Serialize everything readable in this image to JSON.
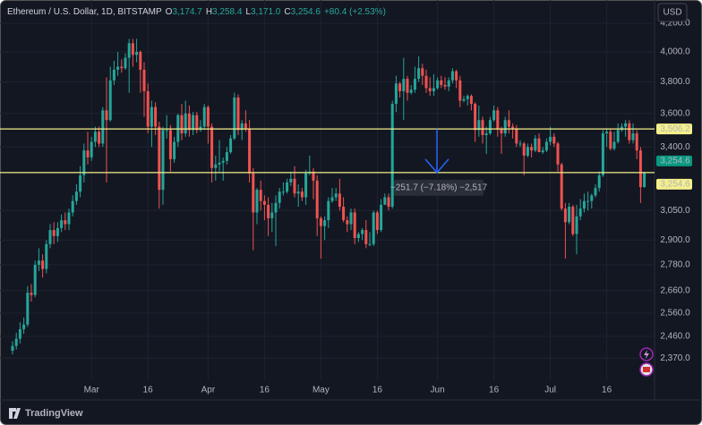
{
  "chart_data": {
    "type": "candlestick",
    "title": "Ethereum / U.S. Dollar, 1D, BITSTAMP",
    "ohlc_header": [
      {
        "label": "O",
        "value": "3,174.7"
      },
      {
        "label": "H",
        "value": "3,258.4"
      },
      {
        "label": "L",
        "value": "3,171.0"
      },
      {
        "label": "C",
        "value": "3,254.6"
      }
    ],
    "change": "+80.4 (+2.53%)",
    "currency": "USD",
    "log_scale": true,
    "grid": true,
    "up_color": "#26a69a",
    "down_color": "#ef5350",
    "ylim": [
      2282,
      4371
    ],
    "yticks": [
      {
        "value": 4200,
        "label": "4,200.0"
      },
      {
        "value": 4000,
        "label": "4,000.0"
      },
      {
        "value": 3800,
        "label": "3,800.0"
      },
      {
        "value": 3600,
        "label": "3,600.0"
      },
      {
        "value": 3400,
        "label": "3,400.0"
      },
      {
        "value": 3050,
        "label": "3,050.0"
      },
      {
        "value": 2900,
        "label": "2,900.0"
      },
      {
        "value": 2780,
        "label": "2,780.0"
      },
      {
        "value": 2660,
        "label": "2,660.0"
      },
      {
        "value": 2560,
        "label": "2,560.0"
      },
      {
        "value": 2460,
        "label": "2,460.0"
      },
      {
        "value": 2370,
        "label": "2,370.0"
      }
    ],
    "xticks": [
      {
        "value": 21,
        "label": "Mar"
      },
      {
        "value": 36,
        "label": "16"
      },
      {
        "value": 52,
        "label": "Apr"
      },
      {
        "value": 67,
        "label": "16"
      },
      {
        "value": 82,
        "label": "May"
      },
      {
        "value": 97,
        "label": "16"
      },
      {
        "value": 113,
        "label": "Jun"
      },
      {
        "value": 128,
        "label": "16"
      },
      {
        "value": 143,
        "label": "Jul"
      },
      {
        "value": 158,
        "label": "16"
      }
    ],
    "candles": [
      [
        2400,
        2440,
        2385,
        2420
      ],
      [
        2420,
        2475,
        2405,
        2450
      ],
      [
        2450,
        2520,
        2430,
        2490
      ],
      [
        2490,
        2540,
        2470,
        2510
      ],
      [
        2510,
        2680,
        2500,
        2650
      ],
      [
        2650,
        2690,
        2610,
        2640
      ],
      [
        2640,
        2800,
        2630,
        2780
      ],
      [
        2780,
        2860,
        2750,
        2800
      ],
      [
        2800,
        2830,
        2720,
        2760
      ],
      [
        2760,
        2900,
        2740,
        2880
      ],
      [
        2880,
        2980,
        2860,
        2950
      ],
      [
        2950,
        2990,
        2880,
        2920
      ],
      [
        2920,
        2990,
        2890,
        2960
      ],
      [
        2960,
        3030,
        2940,
        3000
      ],
      [
        3000,
        3040,
        2950,
        2980
      ],
      [
        2980,
        3060,
        2950,
        3040
      ],
      [
        3040,
        3130,
        3020,
        3100
      ],
      [
        3100,
        3190,
        3080,
        3150
      ],
      [
        3150,
        3290,
        3120,
        3240
      ],
      [
        3240,
        3420,
        3200,
        3380
      ],
      [
        3380,
        3490,
        3300,
        3340
      ],
      [
        3340,
        3460,
        3320,
        3430
      ],
      [
        3430,
        3520,
        3400,
        3490
      ],
      [
        3490,
        3520,
        3400,
        3420
      ],
      [
        3420,
        3640,
        3400,
        3620
      ],
      [
        3620,
        3830,
        3200,
        3560
      ],
      [
        3560,
        3900,
        3550,
        3810
      ],
      [
        3810,
        3940,
        3780,
        3880
      ],
      [
        3880,
        4000,
        3840,
        3900
      ],
      [
        3900,
        3950,
        3860,
        3890
      ],
      [
        3890,
        3990,
        3880,
        3960
      ],
      [
        3960,
        4090,
        3730,
        4060
      ],
      [
        4060,
        4090,
        3900,
        3980
      ],
      [
        3980,
        4090,
        3930,
        4000
      ],
      [
        4000,
        4010,
        3730,
        3880
      ],
      [
        3880,
        3930,
        3580,
        3740
      ],
      [
        3740,
        3790,
        3480,
        3520
      ],
      [
        3520,
        3680,
        3400,
        3640
      ],
      [
        3640,
        3670,
        3470,
        3520
      ],
      [
        3520,
        3550,
        3060,
        3160
      ],
      [
        3160,
        3520,
        3080,
        3500
      ],
      [
        3500,
        3590,
        3450,
        3500
      ],
      [
        3500,
        3530,
        3260,
        3330
      ],
      [
        3330,
        3460,
        3310,
        3430
      ],
      [
        3430,
        3600,
        3400,
        3590
      ],
      [
        3590,
        3660,
        3440,
        3480
      ],
      [
        3480,
        3680,
        3460,
        3600
      ],
      [
        3600,
        3650,
        3460,
        3500
      ],
      [
        3500,
        3610,
        3470,
        3590
      ],
      [
        3590,
        3610,
        3480,
        3500
      ],
      [
        3500,
        3560,
        3490,
        3520
      ],
      [
        3520,
        3660,
        3500,
        3640
      ],
      [
        3640,
        3650,
        3420,
        3520
      ],
      [
        3520,
        3540,
        3200,
        3280
      ],
      [
        3280,
        3350,
        3210,
        3300
      ],
      [
        3300,
        3440,
        3260,
        3310
      ],
      [
        3310,
        3340,
        3210,
        3320
      ],
      [
        3320,
        3400,
        3300,
        3370
      ],
      [
        3370,
        3470,
        3360,
        3450
      ],
      [
        3450,
        3730,
        3440,
        3700
      ],
      [
        3700,
        3720,
        3470,
        3500
      ],
      [
        3500,
        3560,
        3440,
        3540
      ],
      [
        3540,
        3620,
        3490,
        3510
      ],
      [
        3510,
        3560,
        3200,
        3250
      ],
      [
        3250,
        3280,
        2850,
        3040
      ],
      [
        3040,
        3170,
        2980,
        3160
      ],
      [
        3160,
        3210,
        3050,
        3100
      ],
      [
        3100,
        3130,
        3000,
        3080
      ],
      [
        3080,
        3120,
        2920,
        3010
      ],
      [
        3010,
        3090,
        2940,
        3040
      ],
      [
        3040,
        3130,
        2870,
        3090
      ],
      [
        3090,
        3170,
        3060,
        3150
      ],
      [
        3150,
        3200,
        3130,
        3150
      ],
      [
        3150,
        3220,
        3140,
        3200
      ],
      [
        3200,
        3260,
        3180,
        3220
      ],
      [
        3220,
        3290,
        3120,
        3140
      ],
      [
        3140,
        3190,
        3070,
        3150
      ],
      [
        3150,
        3170,
        3100,
        3120
      ],
      [
        3120,
        3270,
        3080,
        3250
      ],
      [
        3250,
        3350,
        3240,
        3260
      ],
      [
        3260,
        3280,
        3110,
        3210
      ],
      [
        3210,
        3240,
        2920,
        3010
      ],
      [
        3010,
        3020,
        2810,
        2970
      ],
      [
        2970,
        3020,
        2900,
        3000
      ],
      [
        3000,
        3120,
        2960,
        3100
      ],
      [
        3100,
        3170,
        3090,
        3120
      ],
      [
        3120,
        3170,
        3100,
        3140
      ],
      [
        3140,
        3220,
        3050,
        3070
      ],
      [
        3070,
        3120,
        2990,
        3000
      ],
      [
        3000,
        3020,
        2940,
        2980
      ],
      [
        2980,
        3060,
        2950,
        3040
      ],
      [
        3040,
        3060,
        2880,
        2910
      ],
      [
        2910,
        2940,
        2890,
        2930
      ],
      [
        2930,
        2960,
        2900,
        2950
      ],
      [
        2950,
        3000,
        2860,
        2880
      ],
      [
        2880,
        2940,
        2870,
        2880
      ],
      [
        2880,
        3050,
        2870,
        3040
      ],
      [
        3040,
        3050,
        2930,
        2950
      ],
      [
        2950,
        3110,
        2940,
        3080
      ],
      [
        3080,
        3140,
        3080,
        3120
      ],
      [
        3120,
        3140,
        3050,
        3070
      ],
      [
        3070,
        3680,
        3060,
        3660
      ],
      [
        3660,
        3840,
        3610,
        3790
      ],
      [
        3790,
        3800,
        3700,
        3740
      ],
      [
        3740,
        3960,
        3560,
        3820
      ],
      [
        3820,
        3840,
        3680,
        3730
      ],
      [
        3730,
        3780,
        3720,
        3750
      ],
      [
        3750,
        3900,
        3730,
        3820
      ],
      [
        3820,
        3970,
        3800,
        3890
      ],
      [
        3890,
        3920,
        3780,
        3840
      ],
      [
        3840,
        3880,
        3730,
        3760
      ],
      [
        3760,
        3830,
        3710,
        3740
      ],
      [
        3740,
        3850,
        3710,
        3760
      ],
      [
        3760,
        3830,
        3750,
        3810
      ],
      [
        3810,
        3840,
        3760,
        3780
      ],
      [
        3780,
        3830,
        3750,
        3770
      ],
      [
        3770,
        3830,
        3740,
        3810
      ],
      [
        3810,
        3890,
        3790,
        3870
      ],
      [
        3870,
        3880,
        3760,
        3810
      ],
      [
        3810,
        3840,
        3640,
        3680
      ],
      [
        3680,
        3710,
        3670,
        3690
      ],
      [
        3690,
        3720,
        3650,
        3710
      ],
      [
        3710,
        3720,
        3620,
        3660
      ],
      [
        3660,
        3670,
        3430,
        3500
      ],
      [
        3500,
        3650,
        3460,
        3560
      ],
      [
        3560,
        3580,
        3420,
        3470
      ],
      [
        3470,
        3520,
        3360,
        3480
      ],
      [
        3480,
        3580,
        3470,
        3560
      ],
      [
        3560,
        3650,
        3550,
        3620
      ],
      [
        3620,
        3640,
        3460,
        3510
      ],
      [
        3510,
        3520,
        3360,
        3480
      ],
      [
        3480,
        3580,
        3460,
        3560
      ],
      [
        3560,
        3620,
        3480,
        3520
      ],
      [
        3520,
        3540,
        3450,
        3510
      ],
      [
        3510,
        3530,
        3400,
        3420
      ],
      [
        3420,
        3440,
        3400,
        3420
      ],
      [
        3420,
        3430,
        3240,
        3350
      ],
      [
        3350,
        3420,
        3340,
        3400
      ],
      [
        3400,
        3420,
        3340,
        3380
      ],
      [
        3380,
        3470,
        3370,
        3450
      ],
      [
        3450,
        3480,
        3370,
        3370
      ],
      [
        3370,
        3400,
        3360,
        3380
      ],
      [
        3380,
        3450,
        3370,
        3430
      ],
      [
        3430,
        3520,
        3410,
        3460
      ],
      [
        3460,
        3480,
        3400,
        3420
      ],
      [
        3420,
        3430,
        3260,
        3300
      ],
      [
        3300,
        3310,
        3050,
        3060
      ],
      [
        3060,
        3090,
        2810,
        2990
      ],
      [
        2990,
        3090,
        2980,
        3070
      ],
      [
        3070,
        3080,
        2920,
        2930
      ],
      [
        2930,
        3080,
        2830,
        3020
      ],
      [
        3020,
        3110,
        3000,
        3060
      ],
      [
        3060,
        3140,
        3040,
        3100
      ],
      [
        3100,
        3150,
        3050,
        3100
      ],
      [
        3100,
        3140,
        3060,
        3130
      ],
      [
        3130,
        3190,
        3120,
        3170
      ],
      [
        3170,
        3260,
        3150,
        3240
      ],
      [
        3240,
        3500,
        3230,
        3480
      ],
      [
        3480,
        3510,
        3400,
        3490
      ],
      [
        3490,
        3510,
        3380,
        3390
      ],
      [
        3390,
        3490,
        3380,
        3430
      ],
      [
        3430,
        3540,
        3420,
        3500
      ],
      [
        3500,
        3540,
        3490,
        3520
      ],
      [
        3520,
        3560,
        3460,
        3540
      ],
      [
        3540,
        3560,
        3420,
        3440
      ],
      [
        3440,
        3540,
        3420,
        3480
      ],
      [
        3480,
        3500,
        3330,
        3380
      ],
      [
        3380,
        3400,
        3090,
        3174.7
      ],
      [
        3174.7,
        3258.4,
        3171,
        3254.6
      ]
    ],
    "hlines": [
      {
        "value": 3506.2,
        "label": "3,506.2",
        "color": "#f4ef8a"
      },
      {
        "value": 3254.6,
        "label": "3,254.6",
        "color": "#f4ef8a"
      }
    ],
    "last_price": {
      "value": 3254.6,
      "label": "3,254.6",
      "color": "#089981"
    },
    "measure_text": "−251.7 (−7.18%) −2,517",
    "brand": "TradingView"
  }
}
